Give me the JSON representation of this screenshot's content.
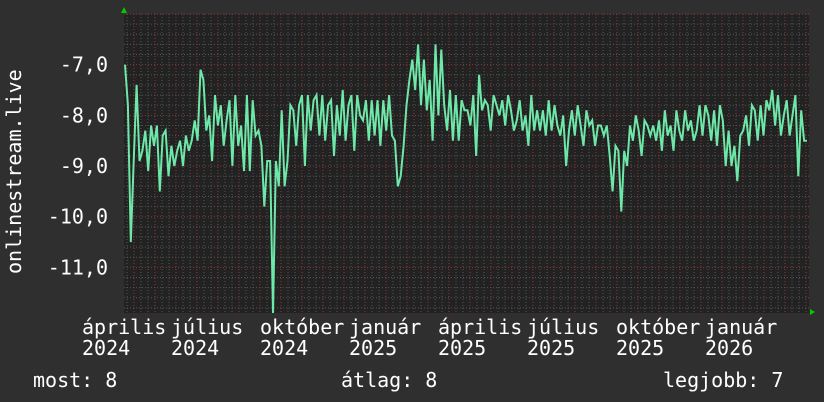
{
  "chart_data": {
    "type": "line",
    "title": "",
    "ylabel": "onlinestream.live",
    "xlabel": "",
    "ylim": [
      -11.9,
      -6.0
    ],
    "yticks": [
      -7.0,
      -8.0,
      -9.0,
      -10.0,
      -11.0
    ],
    "ytick_labels": [
      "-7,0",
      "-8,0",
      "-9,0",
      "-10,0",
      "-11,0"
    ],
    "xtick_labels": [
      "április 2024",
      "július 2024",
      "október 2024",
      "január 2025",
      "április 2025",
      "július 2025",
      "október 2025",
      "január 2026"
    ],
    "grid": true,
    "colors": {
      "line": "#6ee8a8",
      "plot_bg": "#222222",
      "background": "#2f2f2f",
      "grid_major": "#8a3a3a",
      "grid_minor": "#555555",
      "axis_arrow": "#00cc00"
    },
    "series": [
      {
        "values": [
          -7.0,
          -7.8,
          -10.5,
          -8.9,
          -7.4,
          -8.9,
          -8.7,
          -8.3,
          -9.1,
          -8.2,
          -8.6,
          -8.2,
          -9.5,
          -8.4,
          -8.3,
          -9.2,
          -8.6,
          -9.0,
          -8.7,
          -8.5,
          -9.0,
          -8.4,
          -8.7,
          -8.5,
          -8.1,
          -8.5,
          -7.1,
          -7.3,
          -8.3,
          -8.0,
          -8.9,
          -7.6,
          -8.2,
          -7.8,
          -8.6,
          -8.1,
          -7.7,
          -9.0,
          -7.6,
          -8.6,
          -8.2,
          -9.1,
          -7.6,
          -9.1,
          -7.7,
          -8.4,
          -8.3,
          -8.6,
          -9.8,
          -8.9,
          -8.9,
          -11.9,
          -8.9,
          -9.4,
          -7.9,
          -9.4,
          -8.9,
          -7.8,
          -7.9,
          -8.6,
          -7.8,
          -7.6,
          -9.0,
          -7.6,
          -8.3,
          -7.7,
          -7.6,
          -8.4,
          -7.6,
          -8.5,
          -7.8,
          -7.7,
          -8.8,
          -7.8,
          -8.4,
          -7.5,
          -8.5,
          -7.8,
          -7.6,
          -8.7,
          -7.6,
          -8.0,
          -8.1,
          -7.7,
          -8.5,
          -7.7,
          -8.4,
          -7.7,
          -8.6,
          -7.7,
          -8.3,
          -7.6,
          -8.4,
          -8.5,
          -9.4,
          -9.2,
          -8.6,
          -7.8,
          -7.3,
          -6.9,
          -7.5,
          -6.6,
          -7.8,
          -6.9,
          -7.9,
          -7.3,
          -8.5,
          -6.6,
          -8.0,
          -6.7,
          -7.8,
          -8.3,
          -7.5,
          -8.5,
          -7.6,
          -8.5,
          -7.7,
          -7.9,
          -7.9,
          -8.2,
          -7.6,
          -8.8,
          -7.2,
          -7.9,
          -7.7,
          -7.8,
          -8.3,
          -7.6,
          -7.8,
          -8.0,
          -7.7,
          -8.2,
          -7.6,
          -7.9,
          -8.3,
          -8.1,
          -7.7,
          -8.3,
          -8.0,
          -8.6,
          -7.6,
          -8.3,
          -7.9,
          -8.3,
          -7.9,
          -8.4,
          -7.7,
          -8.3,
          -7.8,
          -8.2,
          -8.4,
          -8.0,
          -9.0,
          -8.3,
          -7.9,
          -8.4,
          -7.8,
          -8.2,
          -8.6,
          -7.9,
          -8.2,
          -8.1,
          -8.6,
          -8.2,
          -8.2,
          -8.4,
          -8.2,
          -8.8,
          -9.5,
          -8.6,
          -8.7,
          -9.9,
          -8.7,
          -9.0,
          -8.2,
          -8.5,
          -8.0,
          -8.3,
          -8.8,
          -8.1,
          -8.2,
          -8.4,
          -8.2,
          -8.5,
          -8.1,
          -8.7,
          -7.9,
          -8.4,
          -8.2,
          -8.7,
          -7.9,
          -8.3,
          -8.5,
          -7.9,
          -8.3,
          -8.1,
          -8.5,
          -8.3,
          -7.8,
          -8.4,
          -7.8,
          -8.0,
          -8.5,
          -7.9,
          -8.6,
          -7.8,
          -8.1,
          -9.0,
          -8.3,
          -9.0,
          -8.6,
          -9.3,
          -8.4,
          -8.3,
          -8.0,
          -8.6,
          -7.8,
          -7.9,
          -8.5,
          -7.8,
          -8.4,
          -7.7,
          -7.9,
          -7.5,
          -8.2,
          -7.6,
          -8.4,
          -8.0,
          -7.7,
          -8.4,
          -8.0,
          -7.6,
          -9.2,
          -7.9,
          -8.5,
          -8.5
        ]
      }
    ]
  },
  "legend": {
    "current": "most: 8",
    "average": "átlag: 8",
    "best": "legjobb: 7"
  }
}
